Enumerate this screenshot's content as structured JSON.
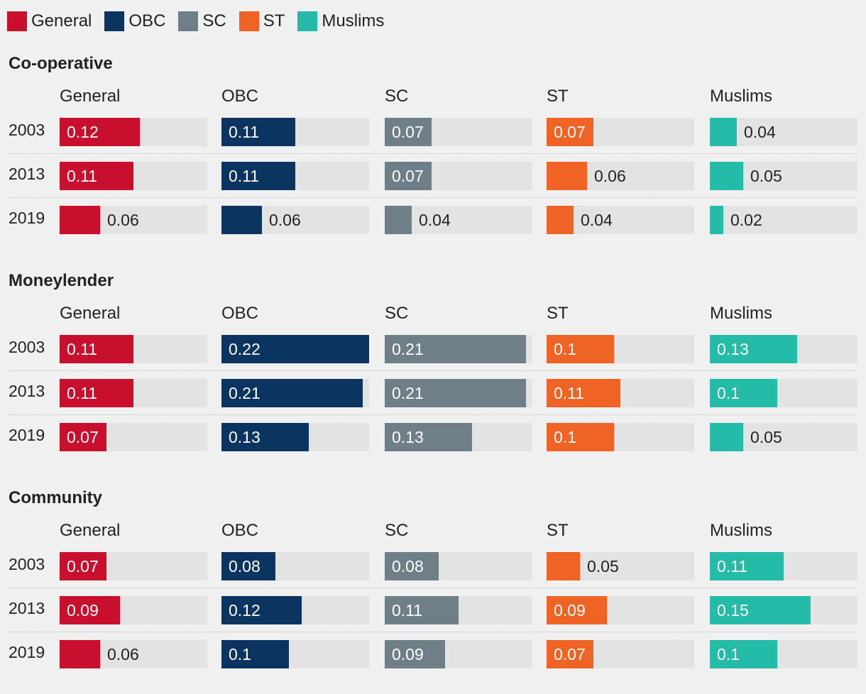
{
  "colors": {
    "General": "#c8102e",
    "OBC": "#0b3560",
    "SC": "#6e7f88",
    "ST": "#ef6424",
    "Muslims": "#24bba9"
  },
  "chart_data": [
    {
      "type": "bar",
      "title": "Co-operative",
      "categories": [
        "General",
        "OBC",
        "SC",
        "ST",
        "Muslims"
      ],
      "series": [
        {
          "name": "2003",
          "values": [
            0.12,
            0.11,
            0.07,
            0.07,
            0.04
          ]
        },
        {
          "name": "2013",
          "values": [
            0.11,
            0.11,
            0.07,
            0.06,
            0.05
          ]
        },
        {
          "name": "2019",
          "values": [
            0.06,
            0.06,
            0.04,
            0.04,
            0.02
          ]
        }
      ],
      "xlim": [
        0,
        0.22
      ]
    },
    {
      "type": "bar",
      "title": "Moneylender",
      "categories": [
        "General",
        "OBC",
        "SC",
        "ST",
        "Muslims"
      ],
      "series": [
        {
          "name": "2003",
          "values": [
            0.11,
            0.22,
            0.21,
            0.1,
            0.13
          ]
        },
        {
          "name": "2013",
          "values": [
            0.11,
            0.21,
            0.21,
            0.11,
            0.1
          ]
        },
        {
          "name": "2019",
          "values": [
            0.07,
            0.13,
            0.13,
            0.1,
            0.05
          ]
        }
      ],
      "xlim": [
        0,
        0.22
      ]
    },
    {
      "type": "bar",
      "title": "Community",
      "categories": [
        "General",
        "OBC",
        "SC",
        "ST",
        "Muslims"
      ],
      "series": [
        {
          "name": "2003",
          "values": [
            0.07,
            0.08,
            0.08,
            0.05,
            0.11
          ]
        },
        {
          "name": "2013",
          "values": [
            0.09,
            0.12,
            0.11,
            0.09,
            0.15
          ]
        },
        {
          "name": "2019",
          "values": [
            0.06,
            0.1,
            0.09,
            0.07,
            0.1
          ]
        }
      ],
      "xlim": [
        0,
        0.22
      ]
    }
  ]
}
